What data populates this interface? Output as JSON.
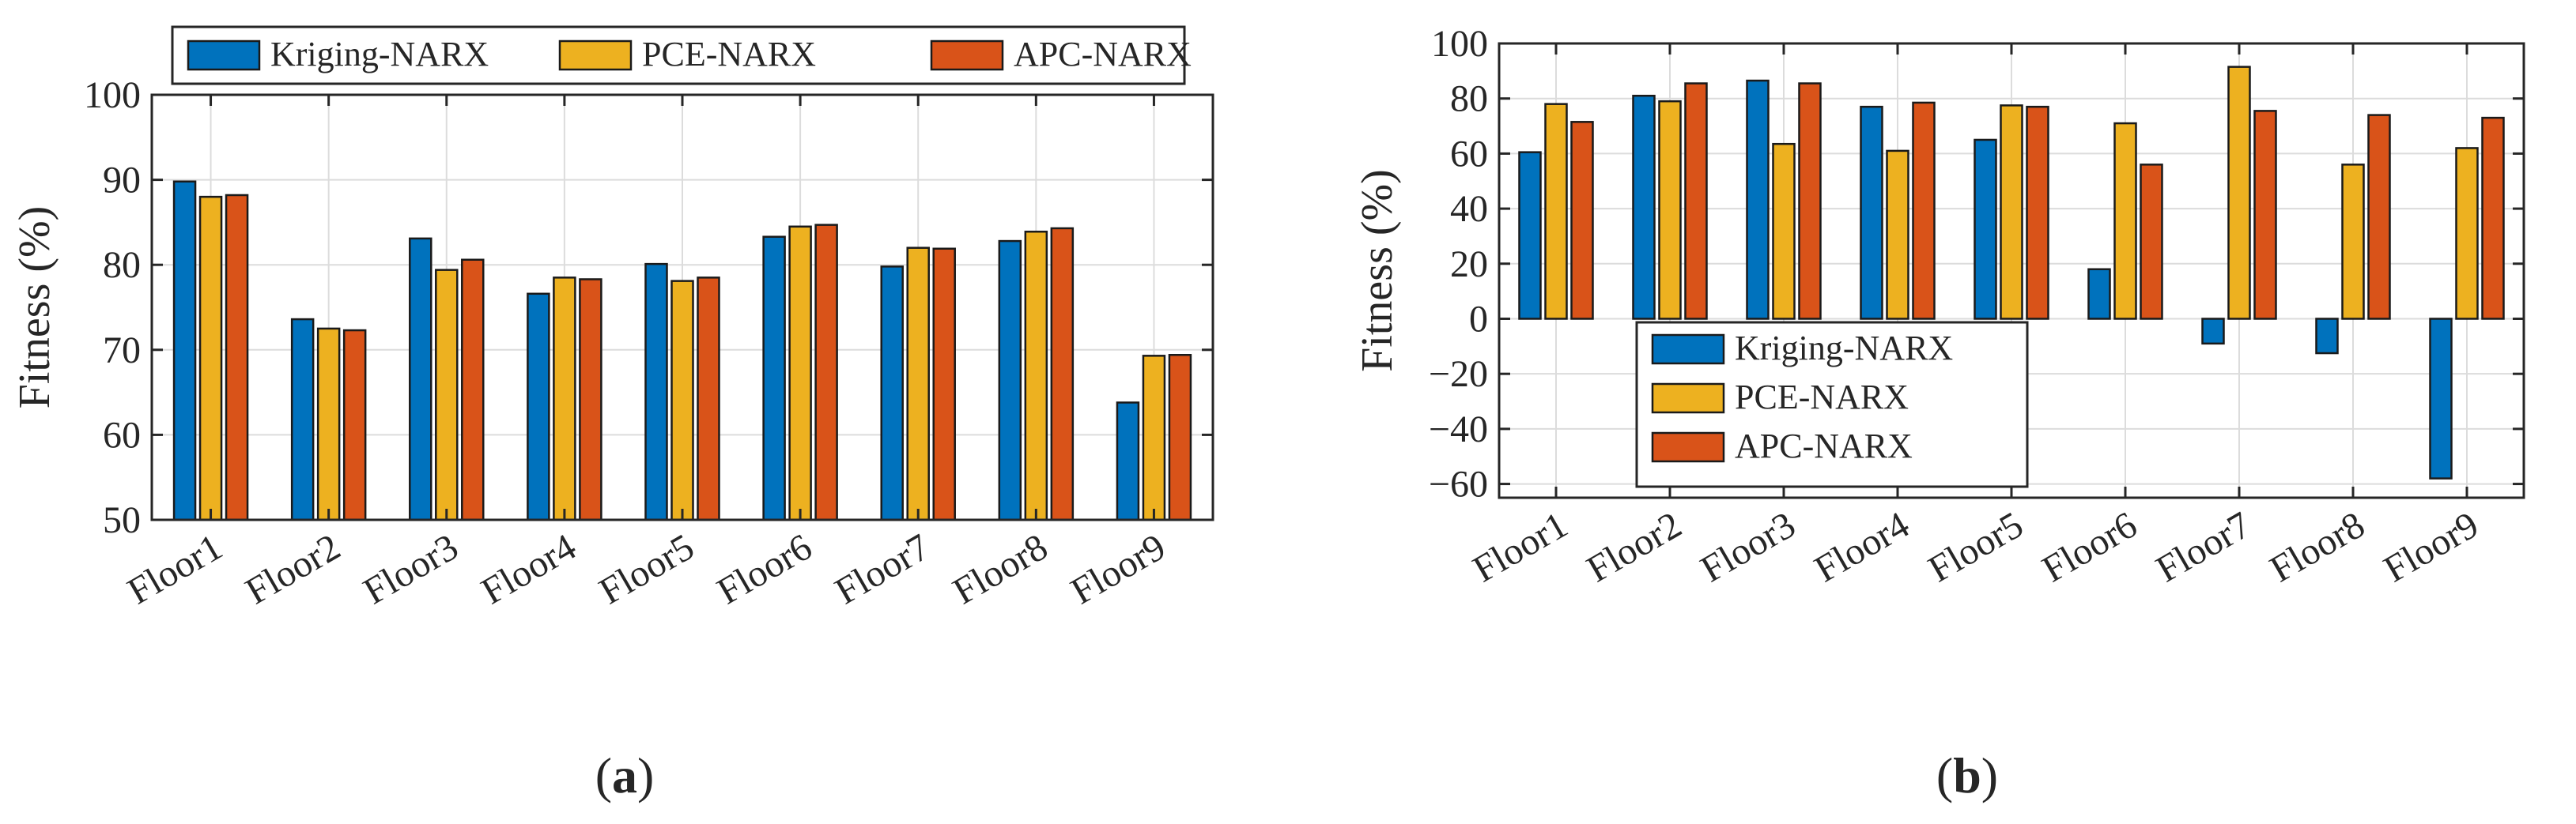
{
  "figure": {
    "caption_a_open": "(",
    "caption_a_letter": "a",
    "caption_a_close": ")",
    "caption_b_open": "(",
    "caption_b_letter": "b",
    "caption_b_close": ")"
  },
  "colors": {
    "kriging": "#0072BD",
    "pce": "#EDB120",
    "apc": "#D95319",
    "grid": "#dcdcdc",
    "axis": "#262626"
  },
  "chart_data": [
    {
      "type": "bar",
      "title": "",
      "xlabel": "",
      "ylabel": "Fitness (%)",
      "ylim": [
        50,
        100
      ],
      "yticks": [
        50,
        60,
        70,
        80,
        90,
        100
      ],
      "grid": true,
      "legend_position": "top-outside",
      "categories": [
        "Floor1",
        "Floor2",
        "Floor3",
        "Floor4",
        "Floor5",
        "Floor6",
        "Floor7",
        "Floor8",
        "Floor9"
      ],
      "series": [
        {
          "name": "Kriging-NARX",
          "values": [
            89.8,
            73.6,
            83.1,
            76.6,
            80.1,
            83.3,
            79.8,
            82.8,
            63.8
          ]
        },
        {
          "name": "PCE-NARX",
          "values": [
            88.0,
            72.5,
            79.4,
            78.5,
            78.1,
            84.5,
            82.0,
            83.9,
            69.3
          ]
        },
        {
          "name": "APC-NARX",
          "values": [
            88.2,
            72.3,
            80.6,
            78.3,
            78.5,
            84.7,
            81.9,
            84.3,
            69.4
          ]
        }
      ]
    },
    {
      "type": "bar",
      "title": "",
      "xlabel": "",
      "ylabel": "Fitness (%)",
      "ylim": [
        -65,
        100
      ],
      "yticks": [
        -60,
        -40,
        -20,
        0,
        20,
        40,
        60,
        80,
        100
      ],
      "grid": true,
      "legend_position": "lower-left",
      "categories": [
        "Floor1",
        "Floor2",
        "Floor3",
        "Floor4",
        "Floor5",
        "Floor6",
        "Floor7",
        "Floor8",
        "Floor9"
      ],
      "series": [
        {
          "name": "Kriging-NARX",
          "values": [
            60.5,
            81.0,
            86.5,
            77.0,
            65.0,
            18.0,
            -9.0,
            -12.5,
            -58.0
          ]
        },
        {
          "name": "PCE-NARX",
          "values": [
            78.0,
            79.0,
            63.5,
            61.0,
            77.5,
            71.0,
            91.5,
            56.0,
            62.0
          ]
        },
        {
          "name": "APC-NARX",
          "values": [
            71.5,
            85.5,
            85.5,
            78.5,
            77.0,
            56.0,
            75.5,
            74.0,
            73.0
          ]
        }
      ]
    }
  ]
}
